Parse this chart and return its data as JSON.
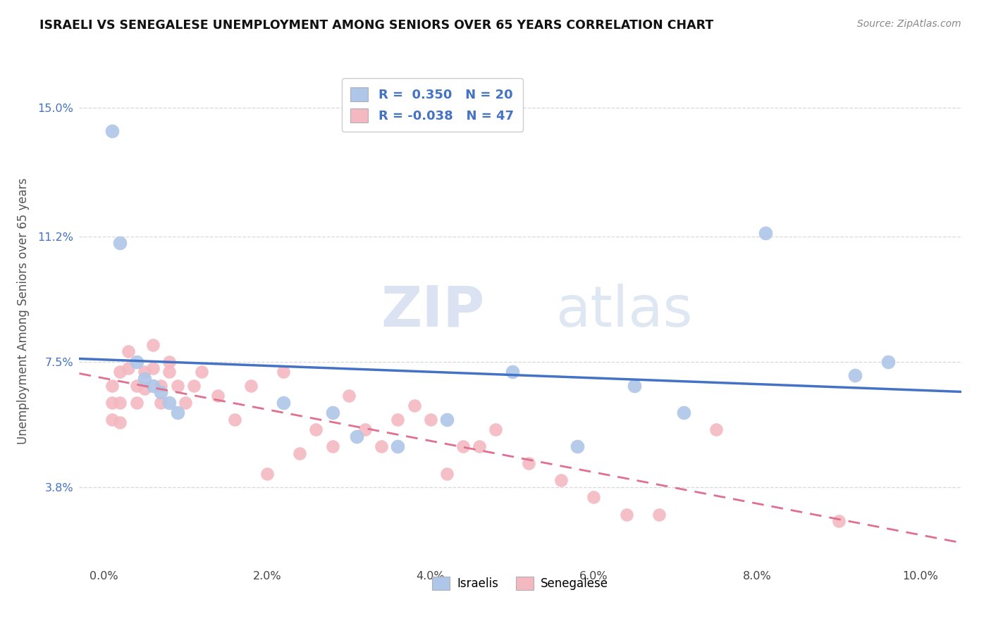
{
  "title": "ISRAELI VS SENEGALESE UNEMPLOYMENT AMONG SENIORS OVER 65 YEARS CORRELATION CHART",
  "source": "Source: ZipAtlas.com",
  "ylabel": "Unemployment Among Seniors over 65 years",
  "xlabel_ticks": [
    "0.0%",
    "2.0%",
    "4.0%",
    "6.0%",
    "8.0%",
    "10.0%"
  ],
  "xlabel_vals": [
    0.0,
    0.02,
    0.04,
    0.06,
    0.08,
    0.1
  ],
  "ylabel_ticks": [
    "3.8%",
    "7.5%",
    "11.2%",
    "15.0%"
  ],
  "ylabel_vals": [
    0.038,
    0.075,
    0.112,
    0.15
  ],
  "xlim": [
    -0.003,
    0.105
  ],
  "ylim": [
    0.015,
    0.165
  ],
  "israeli_R": 0.35,
  "israeli_N": 20,
  "senegalese_R": -0.038,
  "senegalese_N": 47,
  "israeli_color": "#aec6e8",
  "senegalese_color": "#f4b8c1",
  "israeli_line_color": "#4472c4",
  "senegalese_line_color": "#e07090",
  "watermark_zip": "ZIP",
  "watermark_atlas": "atlas",
  "background_color": "#ffffff",
  "plot_bg_color": "#ffffff",
  "grid_color": "#d8d8d8",
  "legend_color_text": "#4472c4",
  "israeli_x": [
    0.001,
    0.002,
    0.004,
    0.005,
    0.006,
    0.007,
    0.008,
    0.009,
    0.022,
    0.028,
    0.031,
    0.036,
    0.042,
    0.05,
    0.058,
    0.065,
    0.071,
    0.081,
    0.092,
    0.096
  ],
  "israeli_y": [
    0.143,
    0.11,
    0.075,
    0.07,
    0.068,
    0.066,
    0.063,
    0.06,
    0.063,
    0.06,
    0.053,
    0.05,
    0.058,
    0.072,
    0.05,
    0.068,
    0.06,
    0.113,
    0.071,
    0.075
  ],
  "senegalese_x": [
    0.001,
    0.001,
    0.001,
    0.002,
    0.002,
    0.002,
    0.003,
    0.003,
    0.004,
    0.004,
    0.005,
    0.005,
    0.006,
    0.006,
    0.007,
    0.007,
    0.008,
    0.008,
    0.009,
    0.01,
    0.011,
    0.012,
    0.014,
    0.016,
    0.018,
    0.02,
    0.022,
    0.024,
    0.026,
    0.028,
    0.03,
    0.032,
    0.034,
    0.036,
    0.038,
    0.04,
    0.042,
    0.044,
    0.046,
    0.048,
    0.052,
    0.056,
    0.06,
    0.064,
    0.068,
    0.075,
    0.09
  ],
  "senegalese_y": [
    0.068,
    0.063,
    0.058,
    0.072,
    0.063,
    0.057,
    0.078,
    0.073,
    0.068,
    0.063,
    0.072,
    0.067,
    0.08,
    0.073,
    0.068,
    0.063,
    0.072,
    0.075,
    0.068,
    0.063,
    0.068,
    0.072,
    0.065,
    0.058,
    0.068,
    0.042,
    0.072,
    0.048,
    0.055,
    0.05,
    0.065,
    0.055,
    0.05,
    0.058,
    0.062,
    0.058,
    0.042,
    0.05,
    0.05,
    0.055,
    0.045,
    0.04,
    0.035,
    0.03,
    0.03,
    0.055,
    0.028
  ]
}
